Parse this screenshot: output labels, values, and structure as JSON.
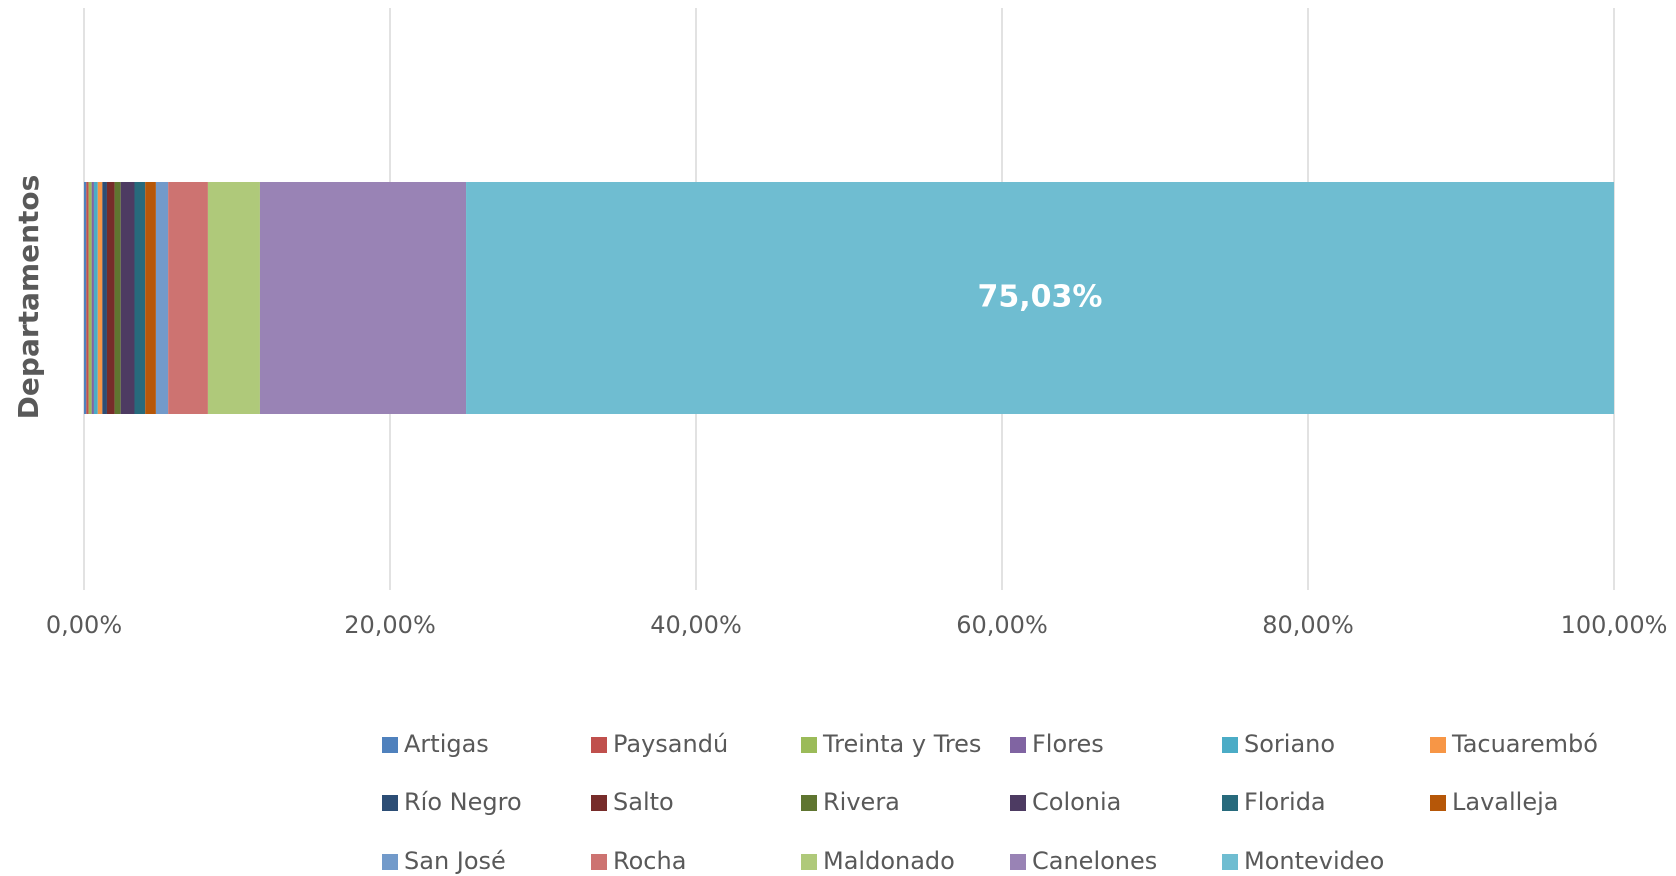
{
  "chart_data": {
    "type": "stacked_bar_horizontal",
    "y_label": "Departamentos",
    "xlim": [
      0,
      100
    ],
    "xticks": [
      {
        "value": 0,
        "label": "0,00%"
      },
      {
        "value": 20,
        "label": "20,00%"
      },
      {
        "value": 40,
        "label": "40,00%"
      },
      {
        "value": 60,
        "label": "60,00%"
      },
      {
        "value": 80,
        "label": "80,00%"
      },
      {
        "value": 100,
        "label": "100,00%"
      }
    ],
    "grid": true,
    "legend": "bottom",
    "series": [
      {
        "name": "Artigas",
        "color": "#4F81BD",
        "values": [
          0.15
        ]
      },
      {
        "name": "Paysandú",
        "color": "#C0504D",
        "values": [
          0.15
        ]
      },
      {
        "name": "Treinta y Tres",
        "color": "#9BBB59",
        "values": [
          0.2
        ]
      },
      {
        "name": "Flores",
        "color": "#8064A2",
        "values": [
          0.15
        ]
      },
      {
        "name": "Soriano",
        "color": "#4BACC6",
        "values": [
          0.25
        ]
      },
      {
        "name": "Tacuarembó",
        "color": "#F79646",
        "values": [
          0.3
        ]
      },
      {
        "name": "Río Negro",
        "color": "#2C4D75",
        "values": [
          0.3
        ]
      },
      {
        "name": "Salto",
        "color": "#772C2A",
        "values": [
          0.5
        ]
      },
      {
        "name": "Rivera",
        "color": "#5F7530",
        "values": [
          0.4
        ]
      },
      {
        "name": "Colonia",
        "color": "#4D3B62",
        "values": [
          0.9
        ]
      },
      {
        "name": "Florida",
        "color": "#276A7C",
        "values": [
          0.7
        ]
      },
      {
        "name": "Lavalleja",
        "color": "#B65708",
        "values": [
          0.7
        ]
      },
      {
        "name": "San José",
        "color": "#729ACA",
        "values": [
          0.8
        ]
      },
      {
        "name": "Rocha",
        "color": "#CD7371",
        "values": [
          2.6
        ]
      },
      {
        "name": "Maldonado",
        "color": "#AFC97A",
        "values": [
          3.4
        ]
      },
      {
        "name": "Canelones",
        "color": "#9983B5",
        "values": [
          13.47
        ]
      },
      {
        "name": "Montevideo",
        "color": "#6FBDD1",
        "values": [
          75.03
        ],
        "value_labels": [
          "75,03%"
        ]
      }
    ]
  }
}
